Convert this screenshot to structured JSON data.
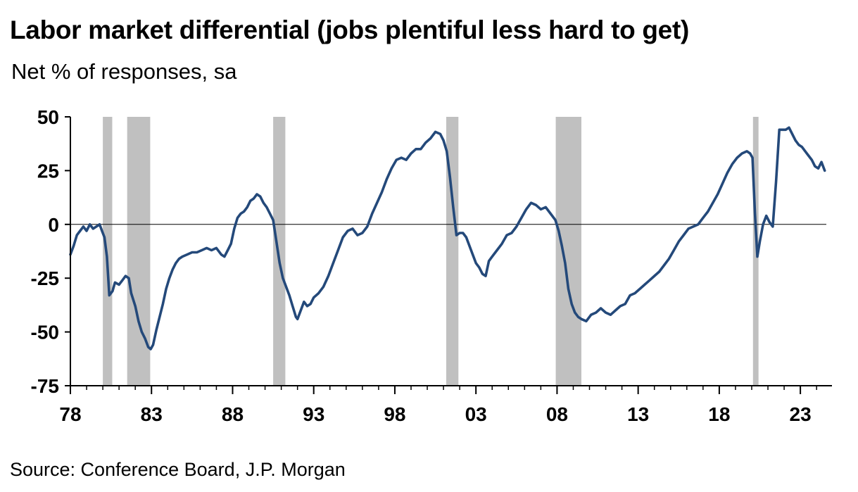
{
  "header": {
    "title": "Labor market differential (jobs plentiful less hard to get)",
    "subtitle": "Net % of responses, sa"
  },
  "footer": {
    "source": "Source: Conference Board, J.P. Morgan"
  },
  "colors": {
    "line": "#24497a",
    "recession": "#c0c0c0",
    "axis": "#000000"
  },
  "chart_data": {
    "type": "line",
    "title": "Labor market differential (jobs plentiful less hard to get)",
    "ylabel": "Net % of responses, sa",
    "xlim": [
      1978,
      2024.6
    ],
    "ylim": [
      -75,
      50
    ],
    "y_ticks": [
      {
        "value": 50,
        "label": "50"
      },
      {
        "value": 25,
        "label": "25"
      },
      {
        "value": 0,
        "label": "0"
      },
      {
        "value": -25,
        "label": "-25"
      },
      {
        "value": -50,
        "label": "-50"
      },
      {
        "value": -75,
        "label": "-75"
      }
    ],
    "x_ticks": [
      {
        "value": 1978,
        "label": "78"
      },
      {
        "value": 1983,
        "label": "83"
      },
      {
        "value": 1988,
        "label": "88"
      },
      {
        "value": 1993,
        "label": "93"
      },
      {
        "value": 1998,
        "label": "98"
      },
      {
        "value": 2003,
        "label": "03"
      },
      {
        "value": 2008,
        "label": "08"
      },
      {
        "value": 2013,
        "label": "13"
      },
      {
        "value": 2018,
        "label": "18"
      },
      {
        "value": 2023,
        "label": "23"
      }
    ],
    "recessions": [
      [
        1980.0,
        1980.58
      ],
      [
        1981.5,
        1982.92
      ],
      [
        1990.5,
        1991.25
      ],
      [
        2001.17,
        2001.92
      ],
      [
        2007.92,
        2009.5
      ],
      [
        2020.08,
        2020.42
      ]
    ],
    "series": [
      {
        "values": [
          [
            1978.0,
            -14
          ],
          [
            1978.2,
            -10
          ],
          [
            1978.4,
            -5
          ],
          [
            1978.6,
            -3
          ],
          [
            1978.8,
            -1
          ],
          [
            1979.0,
            -3
          ],
          [
            1979.2,
            0
          ],
          [
            1979.4,
            -2
          ],
          [
            1979.6,
            -1
          ],
          [
            1979.8,
            0
          ],
          [
            1979.95,
            -3
          ],
          [
            1980.1,
            -6
          ],
          [
            1980.25,
            -15
          ],
          [
            1980.4,
            -33
          ],
          [
            1980.6,
            -31
          ],
          [
            1980.75,
            -27
          ],
          [
            1981.0,
            -28
          ],
          [
            1981.2,
            -26
          ],
          [
            1981.4,
            -24
          ],
          [
            1981.6,
            -25
          ],
          [
            1981.75,
            -32
          ],
          [
            1982.0,
            -38
          ],
          [
            1982.2,
            -45
          ],
          [
            1982.4,
            -50
          ],
          [
            1982.6,
            -53
          ],
          [
            1982.8,
            -57
          ],
          [
            1982.95,
            -58
          ],
          [
            1983.1,
            -56
          ],
          [
            1983.3,
            -49
          ],
          [
            1983.5,
            -43
          ],
          [
            1983.7,
            -37
          ],
          [
            1983.9,
            -30
          ],
          [
            1984.1,
            -25
          ],
          [
            1984.3,
            -21
          ],
          [
            1984.5,
            -18
          ],
          [
            1984.7,
            -16
          ],
          [
            1984.9,
            -15
          ],
          [
            1985.2,
            -14
          ],
          [
            1985.5,
            -13
          ],
          [
            1985.8,
            -13
          ],
          [
            1986.1,
            -12
          ],
          [
            1986.4,
            -11
          ],
          [
            1986.7,
            -12
          ],
          [
            1987.0,
            -11
          ],
          [
            1987.3,
            -14
          ],
          [
            1987.5,
            -15
          ],
          [
            1987.7,
            -12
          ],
          [
            1987.9,
            -9
          ],
          [
            1988.1,
            -2
          ],
          [
            1988.3,
            3
          ],
          [
            1988.5,
            5
          ],
          [
            1988.7,
            6
          ],
          [
            1988.9,
            8
          ],
          [
            1989.1,
            11
          ],
          [
            1989.3,
            12
          ],
          [
            1989.5,
            14
          ],
          [
            1989.7,
            13
          ],
          [
            1989.9,
            10
          ],
          [
            1990.1,
            8
          ],
          [
            1990.3,
            5
          ],
          [
            1990.5,
            2
          ],
          [
            1990.7,
            -8
          ],
          [
            1990.9,
            -18
          ],
          [
            1991.1,
            -25
          ],
          [
            1991.3,
            -29
          ],
          [
            1991.5,
            -33
          ],
          [
            1991.7,
            -38
          ],
          [
            1991.9,
            -43
          ],
          [
            1992.0,
            -44
          ],
          [
            1992.2,
            -40
          ],
          [
            1992.4,
            -36
          ],
          [
            1992.6,
            -38
          ],
          [
            1992.8,
            -37
          ],
          [
            1993.0,
            -34
          ],
          [
            1993.3,
            -32
          ],
          [
            1993.6,
            -29
          ],
          [
            1993.9,
            -24
          ],
          [
            1994.2,
            -18
          ],
          [
            1994.5,
            -12
          ],
          [
            1994.8,
            -6
          ],
          [
            1995.1,
            -3
          ],
          [
            1995.4,
            -2
          ],
          [
            1995.7,
            -5
          ],
          [
            1996.0,
            -4
          ],
          [
            1996.3,
            -1
          ],
          [
            1996.6,
            5
          ],
          [
            1996.9,
            10
          ],
          [
            1997.2,
            15
          ],
          [
            1997.5,
            21
          ],
          [
            1997.8,
            26
          ],
          [
            1998.1,
            30
          ],
          [
            1998.4,
            31
          ],
          [
            1998.7,
            30
          ],
          [
            1999.0,
            33
          ],
          [
            1999.3,
            35
          ],
          [
            1999.6,
            35
          ],
          [
            1999.9,
            38
          ],
          [
            2000.2,
            40
          ],
          [
            2000.5,
            43
          ],
          [
            2000.8,
            42
          ],
          [
            2001.0,
            39
          ],
          [
            2001.2,
            34
          ],
          [
            2001.4,
            22
          ],
          [
            2001.6,
            8
          ],
          [
            2001.8,
            -5
          ],
          [
            2002.0,
            -4
          ],
          [
            2002.2,
            -4
          ],
          [
            2002.4,
            -6
          ],
          [
            2002.6,
            -10
          ],
          [
            2002.8,
            -14
          ],
          [
            2003.0,
            -18
          ],
          [
            2003.2,
            -20
          ],
          [
            2003.4,
            -23
          ],
          [
            2003.6,
            -24
          ],
          [
            2003.8,
            -17
          ],
          [
            2004.0,
            -15
          ],
          [
            2004.3,
            -12
          ],
          [
            2004.6,
            -9
          ],
          [
            2004.9,
            -5
          ],
          [
            2005.2,
            -4
          ],
          [
            2005.5,
            -1
          ],
          [
            2005.8,
            3
          ],
          [
            2006.1,
            7
          ],
          [
            2006.4,
            10
          ],
          [
            2006.7,
            9
          ],
          [
            2007.0,
            7
          ],
          [
            2007.3,
            8
          ],
          [
            2007.6,
            5
          ],
          [
            2007.9,
            2
          ],
          [
            2008.1,
            -3
          ],
          [
            2008.3,
            -10
          ],
          [
            2008.5,
            -18
          ],
          [
            2008.7,
            -30
          ],
          [
            2008.9,
            -37
          ],
          [
            2009.1,
            -41
          ],
          [
            2009.3,
            -43
          ],
          [
            2009.5,
            -44
          ],
          [
            2009.8,
            -45
          ],
          [
            2010.1,
            -42
          ],
          [
            2010.4,
            -41
          ],
          [
            2010.7,
            -39
          ],
          [
            2011.0,
            -41
          ],
          [
            2011.3,
            -42
          ],
          [
            2011.6,
            -40
          ],
          [
            2011.9,
            -38
          ],
          [
            2012.2,
            -37
          ],
          [
            2012.5,
            -33
          ],
          [
            2012.8,
            -32
          ],
          [
            2013.1,
            -30
          ],
          [
            2013.4,
            -28
          ],
          [
            2013.7,
            -26
          ],
          [
            2014.0,
            -24
          ],
          [
            2014.3,
            -22
          ],
          [
            2014.6,
            -19
          ],
          [
            2014.9,
            -16
          ],
          [
            2015.2,
            -12
          ],
          [
            2015.5,
            -8
          ],
          [
            2015.8,
            -5
          ],
          [
            2016.1,
            -2
          ],
          [
            2016.4,
            -1
          ],
          [
            2016.7,
            0
          ],
          [
            2017.0,
            3
          ],
          [
            2017.3,
            6
          ],
          [
            2017.6,
            10
          ],
          [
            2017.9,
            14
          ],
          [
            2018.2,
            19
          ],
          [
            2018.5,
            24
          ],
          [
            2018.8,
            28
          ],
          [
            2019.1,
            31
          ],
          [
            2019.4,
            33
          ],
          [
            2019.7,
            34
          ],
          [
            2019.9,
            33
          ],
          [
            2020.05,
            31
          ],
          [
            2020.2,
            5
          ],
          [
            2020.35,
            -15
          ],
          [
            2020.5,
            -8
          ],
          [
            2020.7,
            0
          ],
          [
            2020.9,
            4
          ],
          [
            2021.1,
            1
          ],
          [
            2021.3,
            -1
          ],
          [
            2021.5,
            20
          ],
          [
            2021.7,
            44
          ],
          [
            2021.9,
            44
          ],
          [
            2022.1,
            44
          ],
          [
            2022.3,
            45
          ],
          [
            2022.5,
            42
          ],
          [
            2022.7,
            39
          ],
          [
            2022.9,
            37
          ],
          [
            2023.1,
            36
          ],
          [
            2023.3,
            34
          ],
          [
            2023.5,
            32
          ],
          [
            2023.7,
            30
          ],
          [
            2023.9,
            27
          ],
          [
            2024.1,
            26
          ],
          [
            2024.3,
            29
          ],
          [
            2024.5,
            25
          ]
        ]
      }
    ]
  }
}
